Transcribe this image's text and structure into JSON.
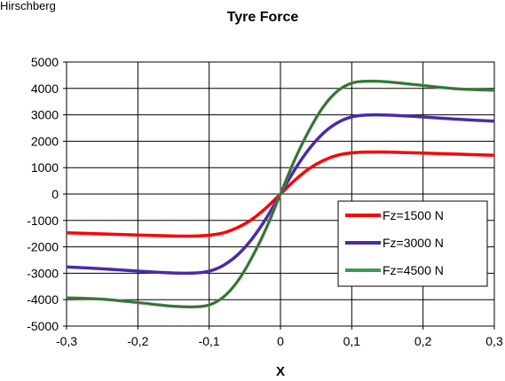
{
  "corner_text": "Hirschberg",
  "chart_data": {
    "type": "line",
    "title": "Tyre Force",
    "xlabel": "X",
    "ylabel": "",
    "xlim": [
      -0.3,
      0.3
    ],
    "ylim": [
      -5000,
      5000
    ],
    "x_ticks": [
      -0.3,
      -0.2,
      -0.1,
      0,
      0.1,
      0.2,
      0.3
    ],
    "x_tick_labels": [
      "-0,3",
      "-0,2",
      "-0,1",
      "0",
      "0,1",
      "0,2",
      "0,3"
    ],
    "y_ticks": [
      -5000,
      -4000,
      -3000,
      -2000,
      -1000,
      0,
      1000,
      2000,
      3000,
      4000,
      5000
    ],
    "y_tick_labels": [
      "-5000",
      "-4000",
      "-3000",
      "-2000",
      "-1000",
      "0",
      "1000",
      "2000",
      "3000",
      "4000",
      "5000"
    ],
    "grid": true,
    "legend_position": "bottom-right",
    "series": [
      {
        "name": "Fz=1500 N",
        "color": "#ff0000",
        "x": [
          -0.3,
          -0.25,
          -0.2,
          -0.15,
          -0.12,
          -0.1,
          -0.08,
          -0.06,
          -0.04,
          -0.02,
          0,
          0.02,
          0.04,
          0.06,
          0.08,
          0.1,
          0.12,
          0.15,
          0.2,
          0.25,
          0.3
        ],
        "values": [
          -1470,
          -1510,
          -1550,
          -1590,
          -1590,
          -1560,
          -1470,
          -1270,
          -960,
          -520,
          0,
          520,
          960,
          1270,
          1470,
          1560,
          1590,
          1590,
          1550,
          1510,
          1470
        ]
      },
      {
        "name": "Fz=3000 N",
        "color": "#4b2aa8",
        "x": [
          -0.3,
          -0.25,
          -0.2,
          -0.15,
          -0.12,
          -0.1,
          -0.08,
          -0.06,
          -0.04,
          -0.02,
          0,
          0.02,
          0.04,
          0.06,
          0.08,
          0.1,
          0.12,
          0.15,
          0.2,
          0.25,
          0.3
        ],
        "values": [
          -2760,
          -2830,
          -2920,
          -2990,
          -2990,
          -2920,
          -2700,
          -2300,
          -1700,
          -920,
          0,
          920,
          1700,
          2300,
          2700,
          2920,
          2990,
          2990,
          2920,
          2830,
          2760
        ]
      },
      {
        "name": "Fz=4500 N",
        "color": "#3a9a52",
        "x": [
          -0.3,
          -0.25,
          -0.2,
          -0.15,
          -0.12,
          -0.1,
          -0.08,
          -0.06,
          -0.04,
          -0.02,
          0,
          0.02,
          0.04,
          0.06,
          0.08,
          0.1,
          0.12,
          0.15,
          0.2,
          0.25,
          0.3
        ],
        "values": [
          -3930,
          -3980,
          -4110,
          -4250,
          -4270,
          -4200,
          -3900,
          -3300,
          -2400,
          -1300,
          0,
          1300,
          2400,
          3300,
          3900,
          4200,
          4270,
          4250,
          4110,
          3980,
          3930
        ]
      }
    ]
  }
}
